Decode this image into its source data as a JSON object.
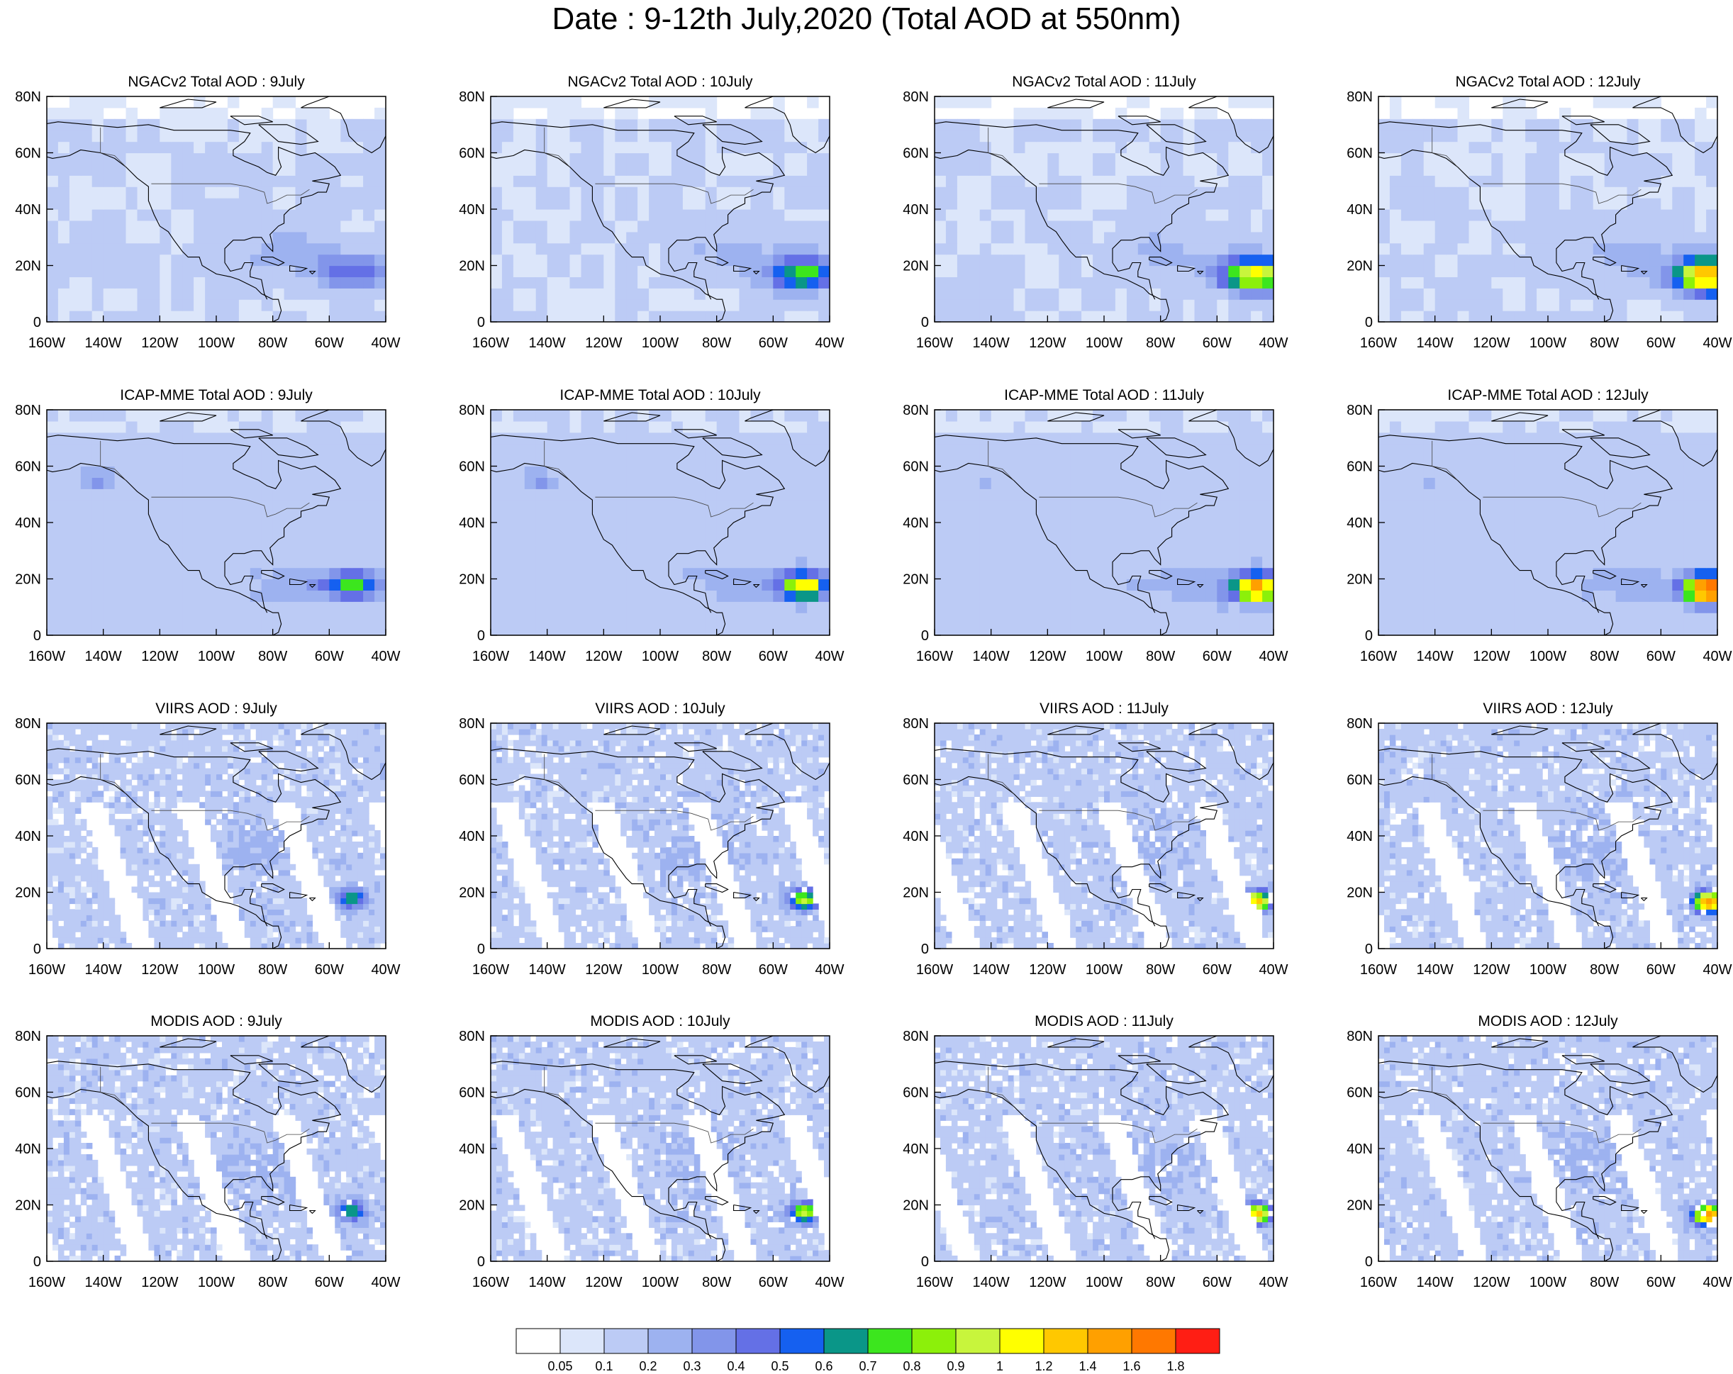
{
  "figure": {
    "title": "Date : 9-12th July,2020 (Total AOD at 550nm)"
  },
  "axes": {
    "lat_ticks": [
      "80N",
      "60N",
      "40N",
      "20N",
      "0"
    ],
    "lon_ticks": [
      "160W",
      "140W",
      "120W",
      "100W",
      "80W",
      "60W",
      "40W"
    ],
    "lat_range": [
      0,
      80
    ],
    "lon_range": [
      -160,
      -40
    ]
  },
  "panels": [
    {
      "title": "NGACv2 Total AOD : 9July",
      "product": "NGACv2",
      "day": 9
    },
    {
      "title": "NGACv2 Total AOD : 10July",
      "product": "NGACv2",
      "day": 10
    },
    {
      "title": "NGACv2 Total AOD : 11July",
      "product": "NGACv2",
      "day": 11
    },
    {
      "title": "NGACv2 Total AOD : 12July",
      "product": "NGACv2",
      "day": 12
    },
    {
      "title": "ICAP-MME Total AOD : 9July",
      "product": "ICAP-MME",
      "day": 9
    },
    {
      "title": "ICAP-MME Total AOD : 10July",
      "product": "ICAP-MME",
      "day": 10
    },
    {
      "title": "ICAP-MME Total AOD : 11July",
      "product": "ICAP-MME",
      "day": 11
    },
    {
      "title": "ICAP-MME Total AOD : 12July",
      "product": "ICAP-MME",
      "day": 12
    },
    {
      "title": "VIIRS AOD : 9July",
      "product": "VIIRS",
      "day": 9
    },
    {
      "title": "VIIRS AOD : 10July",
      "product": "VIIRS",
      "day": 10
    },
    {
      "title": "VIIRS AOD : 11July",
      "product": "VIIRS",
      "day": 11
    },
    {
      "title": "VIIRS AOD : 12July",
      "product": "VIIRS",
      "day": 12
    },
    {
      "title": "MODIS AOD : 9July",
      "product": "MODIS",
      "day": 9
    },
    {
      "title": "MODIS AOD : 10July",
      "product": "MODIS",
      "day": 10
    },
    {
      "title": "MODIS AOD : 11July",
      "product": "MODIS",
      "day": 11
    },
    {
      "title": "MODIS AOD : 12July",
      "product": "MODIS",
      "day": 12
    }
  ],
  "colorbar": {
    "labels": [
      "0.05",
      "0.1",
      "0.2",
      "0.3",
      "0.4",
      "0.5",
      "0.6",
      "0.7",
      "0.8",
      "0.9",
      "1",
      "1.2",
      "1.4",
      "1.6",
      "1.8"
    ],
    "colors": [
      "#ffffff",
      "#dce6fa",
      "#bccbf5",
      "#9db2f0",
      "#8295ea",
      "#6470e6",
      "#1560f0",
      "#0a9688",
      "#3ce61e",
      "#8cf00a",
      "#c8f53c",
      "#ffff00",
      "#ffc800",
      "#ffa000",
      "#ff7800",
      "#ff1e14"
    ]
  }
}
